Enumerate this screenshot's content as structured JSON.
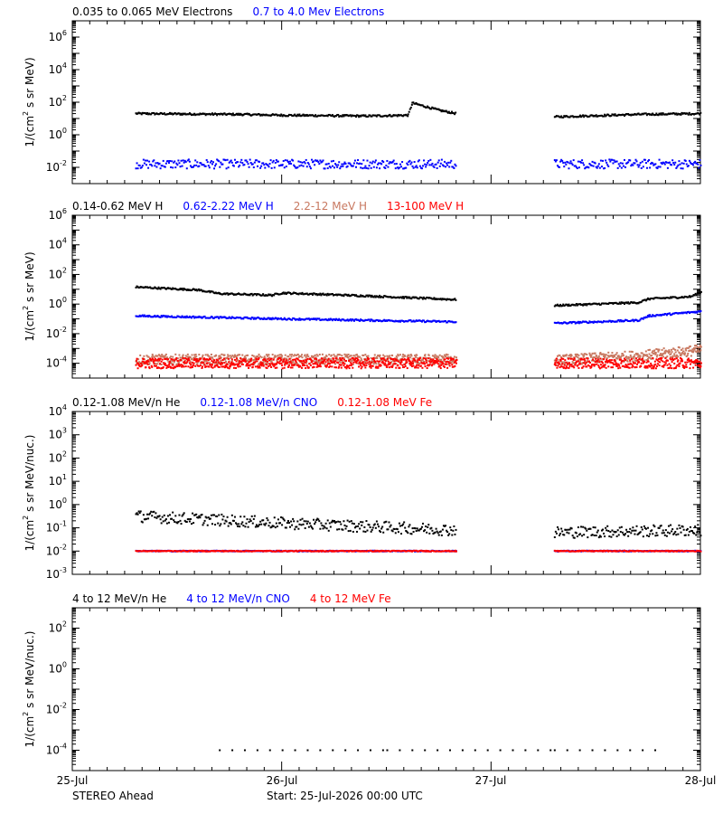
{
  "footer": {
    "spacecraft": "STEREO Ahead",
    "start": "Start: 25-Jul-2026 00:00 UTC"
  },
  "chart_data": [
    {
      "type": "scatter",
      "ylabel_base": "1/(cm",
      "ylabel_sup": "2",
      "ylabel_rest": " s sr MeV)",
      "yscale": "log",
      "ylim_exp": [
        -3,
        7
      ],
      "ytick_exps": [
        -2,
        0,
        2,
        4,
        6
      ],
      "xlim": [
        0,
        3
      ],
      "x_tick_labels": [
        "25-Jul",
        "26-Jul",
        "27-Jul",
        "28-Jul"
      ],
      "data_gap": [
        1.83,
        2.3
      ],
      "series": [
        {
          "name": "0.035 to 0.065 MeV Electrons",
          "color": "#000000",
          "points": [
            [
              0.3,
              1.3
            ],
            [
              0.8,
              1.25
            ],
            [
              1.0,
              1.2
            ],
            [
              1.4,
              1.15
            ],
            [
              1.6,
              1.2
            ],
            [
              1.62,
              1.95
            ],
            [
              1.75,
              1.5
            ],
            [
              1.83,
              1.3
            ],
            [
              2.3,
              1.1
            ],
            [
              2.7,
              1.25
            ],
            [
              3.0,
              1.3
            ]
          ]
        },
        {
          "name": "0.7 to 4.0 Mev Electrons",
          "color": "#0000ff",
          "points": [
            [
              0.3,
              -1.8
            ],
            [
              1.0,
              -1.8
            ],
            [
              1.83,
              -1.8
            ],
            [
              2.3,
              -1.8
            ],
            [
              3.0,
              -1.8
            ]
          ]
        }
      ]
    },
    {
      "type": "scatter",
      "ylabel_base": "1/(cm",
      "ylabel_sup": "2",
      "ylabel_rest": " s sr MeV)",
      "yscale": "log",
      "ylim_exp": [
        -5,
        6
      ],
      "ytick_exps": [
        -4,
        -2,
        0,
        2,
        4,
        6
      ],
      "xlim": [
        0,
        3
      ],
      "x_tick_labels": [
        "25-Jul",
        "26-Jul",
        "27-Jul",
        "28-Jul"
      ],
      "data_gap": [
        1.83,
        2.3
      ],
      "series": [
        {
          "name": "0.14-0.62 MeV H",
          "color": "#000000",
          "points": [
            [
              0.3,
              1.15
            ],
            [
              0.6,
              0.95
            ],
            [
              0.7,
              0.7
            ],
            [
              0.95,
              0.6
            ],
            [
              1.0,
              0.75
            ],
            [
              1.4,
              0.55
            ],
            [
              1.83,
              0.3
            ],
            [
              2.3,
              -0.1
            ],
            [
              2.7,
              0.1
            ],
            [
              2.75,
              0.35
            ],
            [
              2.95,
              0.5
            ],
            [
              3.0,
              0.8
            ]
          ]
        },
        {
          "name": "0.62-2.22 MeV H",
          "color": "#0000ff",
          "points": [
            [
              0.3,
              -0.8
            ],
            [
              1.0,
              -1.0
            ],
            [
              1.83,
              -1.2
            ],
            [
              2.3,
              -1.3
            ],
            [
              2.7,
              -1.1
            ],
            [
              2.75,
              -0.8
            ],
            [
              3.0,
              -0.5
            ]
          ]
        },
        {
          "name": "2.2-12 MeV H",
          "color": "#c87860",
          "points": [
            [
              0.3,
              -3.75
            ],
            [
              1.83,
              -3.75
            ],
            [
              2.3,
              -3.8
            ],
            [
              2.7,
              -3.5
            ],
            [
              3.0,
              -3.1
            ]
          ]
        },
        {
          "name": "13-100 MeV H",
          "color": "#ff0000",
          "points": [
            [
              0.3,
              -4.0
            ],
            [
              1.83,
              -4.0
            ],
            [
              2.3,
              -4.0
            ],
            [
              3.0,
              -4.0
            ]
          ]
        }
      ]
    },
    {
      "type": "scatter",
      "ylabel_base": "1/(cm",
      "ylabel_sup": "2",
      "ylabel_rest": " s sr MeV/nuc.)",
      "yscale": "log",
      "ylim_exp": [
        -3,
        4
      ],
      "ytick_exps": [
        -3,
        -2,
        -1,
        0,
        1,
        2,
        3,
        4
      ],
      "xlim": [
        0,
        3
      ],
      "x_tick_labels": [
        "25-Jul",
        "26-Jul",
        "27-Jul",
        "28-Jul"
      ],
      "data_gap": [
        1.83,
        2.3
      ],
      "series": [
        {
          "name": "0.12-1.08 MeV/n He",
          "color": "#000000",
          "points": [
            [
              0.3,
              -0.5
            ],
            [
              1.0,
              -0.8
            ],
            [
              1.83,
              -1.1
            ],
            [
              2.3,
              -1.2
            ],
            [
              3.0,
              -1.1
            ]
          ]
        },
        {
          "name": "0.12-1.08 MeV/n CNO",
          "color": "#0000ff",
          "points": [
            [
              0.3,
              -2.0
            ],
            [
              1.83,
              -2.0
            ],
            [
              2.3,
              -2.0
            ],
            [
              3.0,
              -2.0
            ]
          ]
        },
        {
          "name": "0.12-1.08 MeV Fe",
          "color": "#ff0000",
          "points": [
            [
              0.3,
              -2.0
            ],
            [
              1.83,
              -2.0
            ],
            [
              2.3,
              -2.0
            ],
            [
              3.0,
              -2.0
            ]
          ]
        }
      ]
    },
    {
      "type": "scatter",
      "ylabel_base": "1/(cm",
      "ylabel_sup": "2",
      "ylabel_rest": " s sr MeV/nuc.)",
      "yscale": "log",
      "ylim_exp": [
        -5,
        3
      ],
      "ytick_exps": [
        -4,
        -2,
        0,
        2
      ],
      "xlim": [
        0,
        3
      ],
      "x_tick_labels": [
        "25-Jul",
        "26-Jul",
        "27-Jul",
        "28-Jul"
      ],
      "data_gap": [
        1.83,
        2.3
      ],
      "series": [
        {
          "name": "4 to 12 MeV/n He",
          "color": "#000000",
          "points": [
            [
              0.7,
              -4.0
            ],
            [
              1.0,
              -4.0
            ],
            [
              1.5,
              -4.0
            ],
            [
              2.3,
              -4.0
            ],
            [
              2.8,
              -4.0
            ]
          ]
        },
        {
          "name": "4 to 12 MeV/n CNO",
          "color": "#0000ff",
          "points": []
        },
        {
          "name": "4 to 12 MeV Fe",
          "color": "#ff0000",
          "points": []
        }
      ]
    }
  ]
}
